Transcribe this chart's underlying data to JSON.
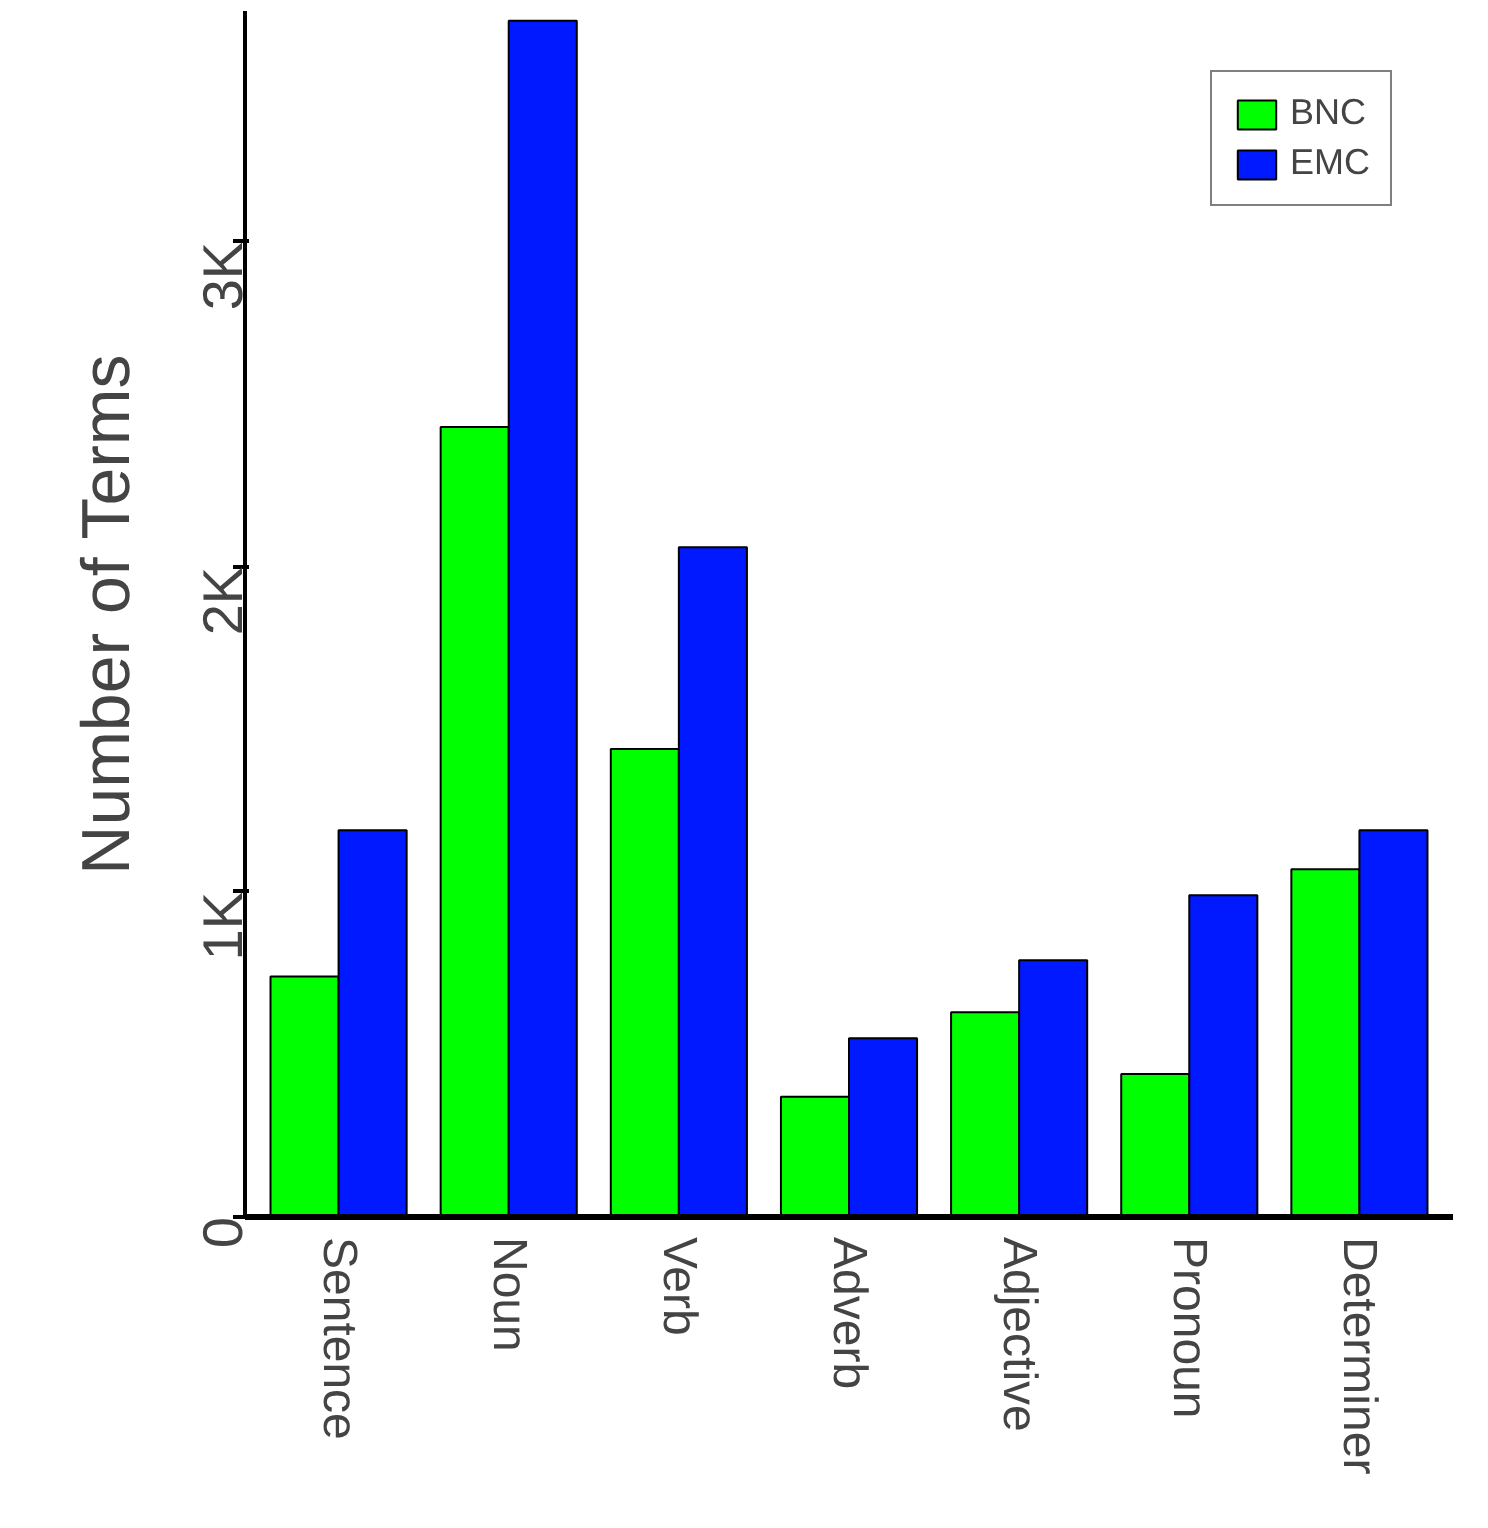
{
  "chart_data": {
    "type": "bar",
    "ylabel": "Number of Terms",
    "categories": [
      "Sentence",
      "Noun",
      "Verb",
      "Adverb",
      "Adjective",
      "Pronoun",
      "Determiner"
    ],
    "series": [
      {
        "name": "BNC",
        "color": "#00ff00",
        "values": [
          740,
          2430,
          1440,
          370,
          630,
          440,
          1070
        ]
      },
      {
        "name": "EMC",
        "color": "#0019ff",
        "values": [
          1190,
          3680,
          2060,
          550,
          790,
          990,
          1190
        ]
      }
    ],
    "ylim": [
      0,
      3710
    ],
    "yticks": [
      0,
      {
        "value": 1000,
        "label": "1K"
      },
      {
        "value": 2000,
        "label": "2K"
      },
      {
        "value": 3000,
        "label": "3K"
      }
    ],
    "grid": false,
    "legend": "top right"
  }
}
